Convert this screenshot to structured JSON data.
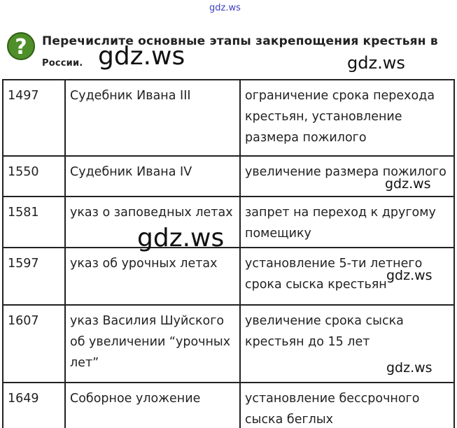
{
  "watermarks": [
    "gdz.ws",
    "gdz.ws",
    "gdz.ws",
    "gdz.ws",
    "gdz.ws",
    "gdz.ws",
    "gdz.ws"
  ],
  "question": {
    "icon": "question-mark-icon",
    "line1": "Перечислите основные этапы закрепощения крестьян в",
    "line2": "России."
  },
  "table": {
    "rows": [
      {
        "year": "1497",
        "document": "Судебник Ивана III",
        "result": "ограничение срока перехода крестьян, установление размера пожилого"
      },
      {
        "year": "1550",
        "document": "Судебник Ивана IV",
        "result": "увеличение размера пожилого"
      },
      {
        "year": "1581",
        "document": "указ о заповедных летах",
        "result": "запрет на переход к другому помещику"
      },
      {
        "year": "1597",
        "document": "указ об урочных летах",
        "result": "установление 5-ти летнего срока сыска крестьян"
      },
      {
        "year": "1607",
        "document": "указ Василия Шуйского об увеличении “урочных лет”",
        "result": "увеличение срока сыска крестьян до 15 лет"
      },
      {
        "year": "1649",
        "document": "Соборное уложение",
        "result": "установление бессрочного сыска беглых"
      }
    ]
  }
}
